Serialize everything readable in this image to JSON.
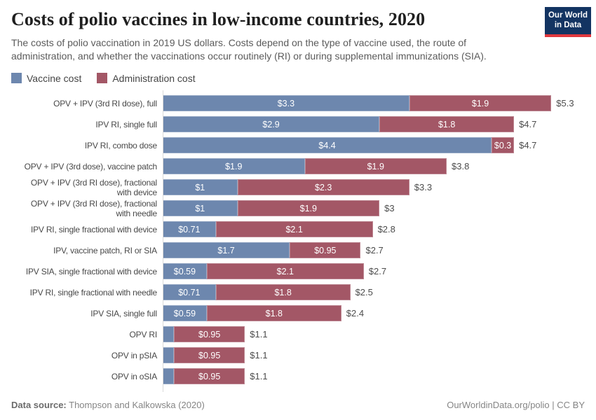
{
  "header": {
    "title": "Costs of polio vaccines in low-income countries, 2020",
    "subtitle": "The costs of polio vaccination in 2019 US dollars. Costs depend on the type of vaccine used, the route of administration, and whether the vaccinations occur routinely (RI) or during supplemental immunizations (SIA).",
    "logo_line1": "Our World",
    "logo_line2": "in Data",
    "logo_bg_color": "#133462",
    "logo_accent_color": "#e0383e"
  },
  "chart_data": {
    "type": "bar",
    "orientation": "horizontal",
    "stacked": true,
    "unit": "$",
    "xlim": [
      0,
      5.3
    ],
    "grid": false,
    "legend_position": "top-left",
    "categories": [
      "OPV + IPV (3rd RI dose), full",
      "IPV RI, single full",
      "IPV RI, combo dose",
      "OPV + IPV (3rd dose), vaccine patch",
      "OPV + IPV (3rd RI dose), fractional\nwith device",
      "OPV + IPV (3rd RI dose), fractional\nwith needle",
      "IPV RI, single fractional with device",
      "IPV, vaccine patch, RI or SIA",
      "IPV SIA, single fractional with device",
      "IPV RI, single fractional with needle",
      "IPV SIA, single full",
      "OPV RI",
      "OPV in pSIA",
      "OPV in oSIA"
    ],
    "series": [
      {
        "name": "Vaccine cost",
        "key": "vaccine-cost",
        "color": "#6d87ae",
        "values": [
          3.3,
          2.9,
          4.4,
          1.9,
          1.0,
          1.0,
          0.71,
          1.7,
          0.59,
          0.71,
          0.59,
          0.15,
          0.15,
          0.15
        ],
        "labels": [
          "$3.3",
          "$2.9",
          "$4.4",
          "$1.9",
          "$1",
          "$1",
          "$0.71",
          "$1.7",
          "$0.59",
          "$0.71",
          "$0.59",
          "",
          "",
          ""
        ]
      },
      {
        "name": "Administration cost",
        "key": "administration-cost",
        "color": "#a35766",
        "values": [
          1.9,
          1.8,
          0.3,
          1.9,
          2.3,
          1.9,
          2.1,
          0.95,
          2.1,
          1.8,
          1.8,
          0.95,
          0.95,
          0.95
        ],
        "labels": [
          "$1.9",
          "$1.8",
          "$0.3",
          "$1.9",
          "$2.3",
          "$1.9",
          "$2.1",
          "$0.95",
          "$2.1",
          "$1.8",
          "$1.8",
          "$0.95",
          "$0.95",
          "$0.95"
        ]
      }
    ],
    "totals": [
      "$5.3",
      "$4.7",
      "$4.7",
      "$3.8",
      "$3.3",
      "$3",
      "$2.8",
      "$2.7",
      "$2.7",
      "$2.5",
      "$2.4",
      "$1.1",
      "$1.1",
      "$1.1"
    ]
  },
  "footer": {
    "source_label": "Data source:",
    "source_value": " Thompson and Kalkowska (2020)",
    "right": "OurWorldinData.org/polio | CC BY"
  }
}
